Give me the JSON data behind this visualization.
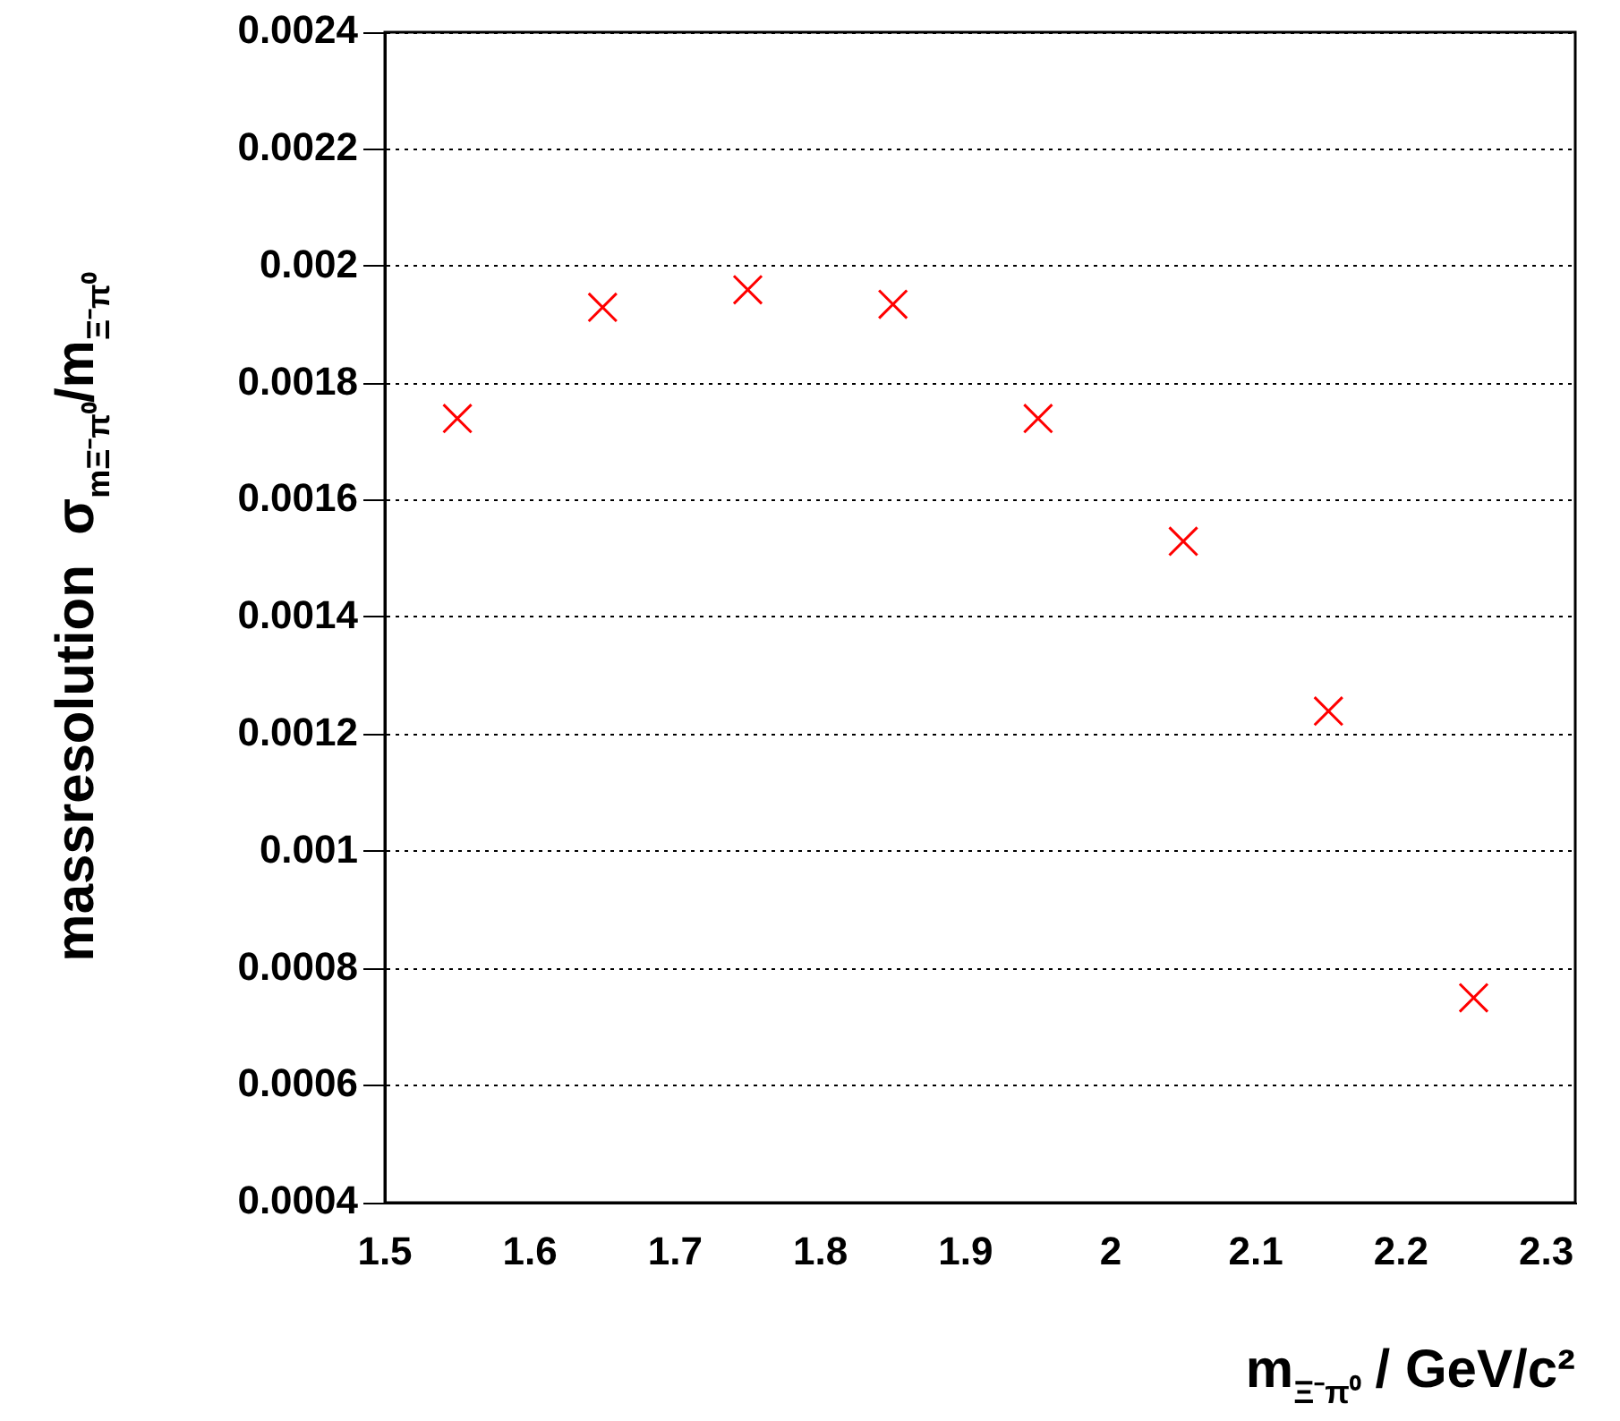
{
  "chart_data": {
    "type": "scatter",
    "xlabel": "m$_{Ξ⁻π⁰}$ / GeV/c²",
    "ylabel": "massresolution  σ$_{mΞ⁻π⁰}$/m$_{Ξ⁻π⁰}$",
    "x": [
      1.55,
      1.65,
      1.75,
      1.85,
      1.95,
      2.05,
      2.15,
      2.25
    ],
    "series": [
      {
        "color": "#ff0000",
        "values": [
          0.00174,
          0.00193,
          0.00196,
          0.001935,
          0.00174,
          0.00153,
          0.00124,
          0.00075
        ]
      }
    ],
    "xlim": [
      1.5,
      2.32
    ],
    "xticks": [
      1.5,
      1.6,
      1.7,
      1.8,
      1.9,
      2,
      2.1,
      2.2,
      2.3
    ],
    "ylim": [
      0.0004,
      0.0024
    ],
    "yticks": [
      0.0004,
      0.0006,
      0.0008,
      0.001,
      0.0012,
      0.0014,
      0.0016,
      0.0018,
      0.002,
      0.0022,
      0.0024
    ],
    "grid": "y",
    "marker": "cross",
    "legend": false
  }
}
